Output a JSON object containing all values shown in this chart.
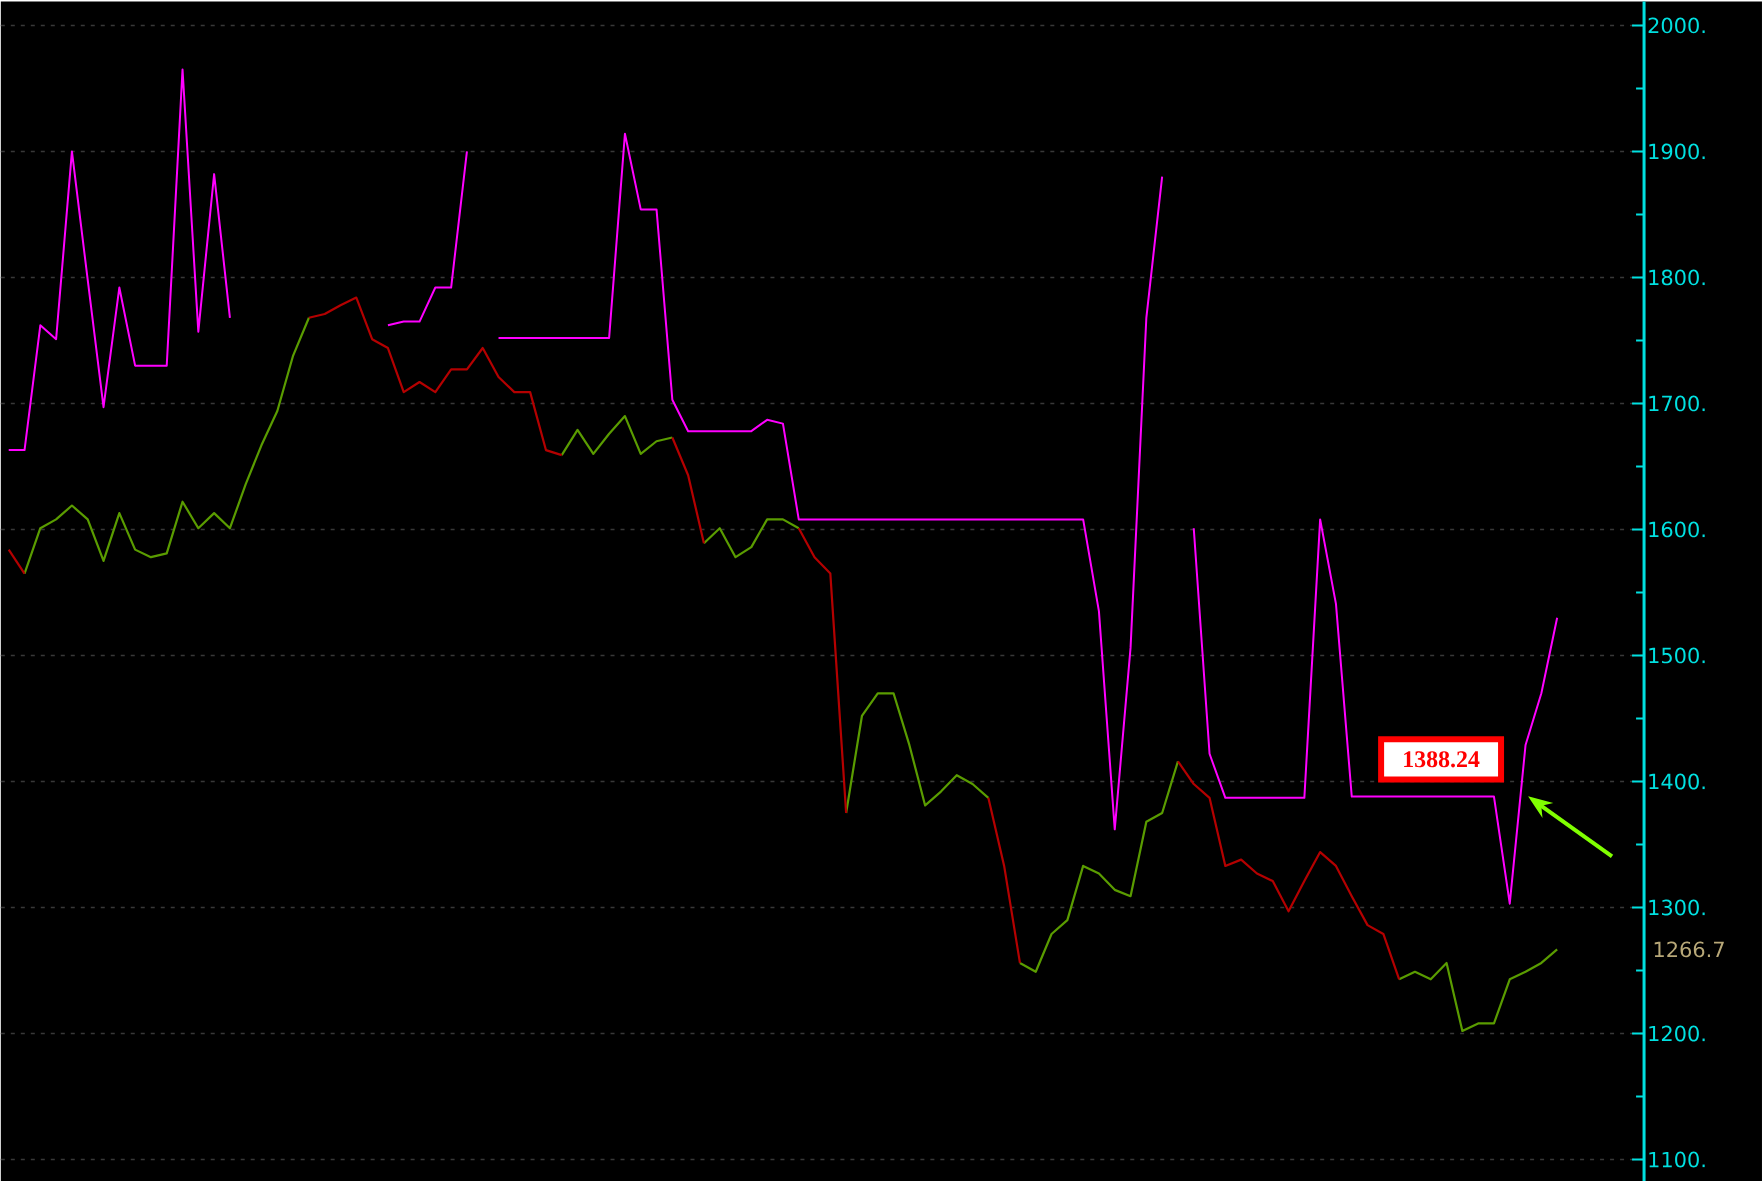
{
  "chart_data": {
    "type": "line",
    "categories": [
      null,
      null,
      null,
      null,
      null,
      null,
      null,
      null,
      null,
      null,
      null,
      null,
      null,
      null,
      null,
      null,
      null,
      null,
      null,
      null,
      null,
      null,
      null,
      null,
      null,
      null,
      null,
      null,
      null,
      null,
      null,
      null,
      null,
      null,
      null,
      null,
      null,
      null,
      null,
      null,
      null,
      null,
      null,
      null,
      null,
      null,
      null,
      null,
      null,
      null,
      null,
      null,
      null,
      null,
      null,
      null,
      null,
      null,
      null,
      null,
      null,
      null,
      null,
      null,
      null,
      null,
      null,
      null,
      null,
      null,
      null,
      null,
      null,
      null,
      null,
      null,
      null,
      null,
      null,
      null,
      null,
      null,
      null,
      null,
      null,
      null,
      null,
      null,
      null,
      null,
      null,
      null,
      null,
      null,
      null,
      null,
      null,
      null,
      null,
      null,
      null,
      null,
      null,
      null
    ],
    "series": [
      {
        "color": "#5a9c00",
        "values": [
          null,
          1565,
          1601,
          1608,
          1619,
          1608,
          1575,
          1613,
          1584,
          1578,
          1581,
          1622,
          1601,
          1613,
          1601,
          1636,
          1667,
          1694,
          1738,
          1768,
          null,
          null,
          null,
          null,
          null,
          null,
          null,
          null,
          null,
          null,
          null,
          null,
          null,
          null,
          null,
          1659,
          1679,
          1660,
          1676,
          1690,
          1660,
          1670,
          1673,
          null,
          1589,
          1601,
          1578,
          1586,
          1608,
          1608,
          1601,
          null,
          null,
          1375,
          1452,
          1470,
          1470,
          1429,
          1381,
          1392,
          1405,
          1398,
          1387,
          null,
          1256,
          1249,
          1279,
          1290,
          1333,
          1327,
          1314,
          1309,
          1368,
          1375,
          1416,
          null,
          null,
          null,
          null,
          null,
          null,
          null,
          null,
          null,
          null,
          null,
          null,
          null,
          1243,
          1249,
          1243,
          1256,
          1202,
          1208,
          1208,
          1243,
          1249,
          1256,
          1266.7,
          null,
          null,
          null,
          null,
          null
        ]
      },
      {
        "color": "#b40000",
        "values": [
          1584,
          1565,
          null,
          null,
          null,
          null,
          null,
          null,
          null,
          null,
          null,
          null,
          null,
          null,
          null,
          null,
          null,
          null,
          null,
          1768,
          1771,
          1778,
          1784,
          1751,
          1744,
          1709,
          1717,
          1709,
          1727,
          1727,
          1744,
          1721,
          1709,
          1709,
          1663,
          1659,
          null,
          null,
          null,
          null,
          null,
          null,
          1673,
          1643,
          1589,
          null,
          null,
          null,
          null,
          null,
          1601,
          1578,
          1565,
          1375,
          null,
          null,
          null,
          null,
          null,
          null,
          null,
          null,
          1387,
          1333,
          1256,
          null,
          null,
          null,
          null,
          null,
          null,
          null,
          null,
          null,
          1416,
          1398,
          1387,
          1333,
          1338,
          1327,
          1321,
          1297,
          1321,
          1344,
          1333,
          1309,
          1286,
          1279,
          1243,
          null,
          null,
          null,
          null,
          null,
          null,
          null,
          null,
          null,
          null,
          null,
          null,
          null,
          null,
          null
        ]
      },
      {
        "color": "#ff00ff",
        "values": [
          1663,
          1663,
          1762,
          1751,
          1900,
          1798,
          1697,
          1792,
          1730,
          1730,
          1730,
          1965,
          1757,
          1882,
          1768,
          null,
          null,
          null,
          null,
          null,
          null,
          null,
          null,
          null,
          1762,
          1765,
          1765,
          1792,
          1792,
          1900,
          null,
          1752,
          1752,
          1752,
          1752,
          1752,
          1752,
          1752,
          1752,
          1914,
          1854,
          1854,
          1703,
          1678,
          1678,
          1678,
          1678,
          1678,
          1687,
          1684,
          1608,
          1608,
          1608,
          1608,
          1608,
          1608,
          1608,
          1608,
          1608,
          1608,
          1608,
          1608,
          1608,
          1608,
          1608,
          1608,
          1608,
          1608,
          1608,
          1535,
          1362,
          1506,
          1768,
          1880,
          null,
          1601,
          1422,
          1387,
          1387,
          1387,
          1387,
          1387,
          1387,
          1608,
          1541,
          1388,
          1388,
          1388,
          1388,
          1388,
          1388,
          1388,
          1388,
          1388,
          1388,
          1303,
          1429,
          1470,
          1530,
          null,
          null,
          null,
          null,
          null
        ]
      }
    ],
    "ylim": [
      1083,
      2019
    ],
    "yticks": [
      {
        "value": 1100,
        "label": "1100."
      },
      {
        "value": 1200,
        "label": "1200."
      },
      {
        "value": 1300,
        "label": "1300."
      },
      {
        "value": 1400,
        "label": "1400."
      },
      {
        "value": 1500,
        "label": "1500."
      },
      {
        "value": 1600,
        "label": "1600."
      },
      {
        "value": 1700,
        "label": "1700."
      },
      {
        "value": 1800,
        "label": "1800."
      },
      {
        "value": 1900,
        "label": "1900."
      },
      {
        "value": 2000,
        "label": "2000."
      }
    ],
    "grid": "y",
    "annotations": [
      {
        "text": "1388.24",
        "y": 1388.24
      },
      "1266.7"
    ]
  }
}
